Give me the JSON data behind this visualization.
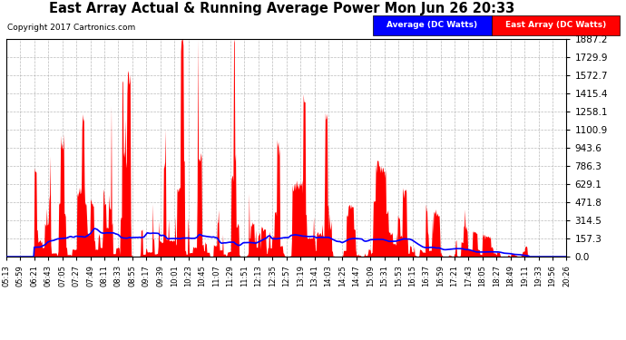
{
  "title": "East Array Actual & Running Average Power Mon Jun 26 20:33",
  "copyright": "Copyright 2017 Cartronics.com",
  "legend_labels": [
    "Average (DC Watts)",
    "East Array (DC Watts)"
  ],
  "legend_colors": [
    "blue",
    "red"
  ],
  "yticks": [
    0.0,
    157.3,
    314.5,
    471.8,
    629.1,
    786.3,
    943.6,
    1100.9,
    1258.1,
    1415.4,
    1572.7,
    1729.9,
    1887.2
  ],
  "ymax": 1887.2,
  "ymin": 0.0,
  "xtick_labels": [
    "05:13",
    "05:59",
    "06:21",
    "06:43",
    "07:05",
    "07:27",
    "07:49",
    "08:11",
    "08:33",
    "08:55",
    "09:17",
    "09:39",
    "10:01",
    "10:23",
    "10:45",
    "11:07",
    "11:29",
    "11:51",
    "12:13",
    "12:35",
    "12:57",
    "13:19",
    "13:41",
    "14:03",
    "14:25",
    "14:47",
    "15:09",
    "15:31",
    "15:53",
    "16:15",
    "16:37",
    "16:59",
    "17:21",
    "17:43",
    "18:05",
    "18:27",
    "18:49",
    "19:11",
    "19:33",
    "19:56",
    "20:26"
  ],
  "n_points": 920,
  "seed": 42,
  "peak_t": 330,
  "sigma": 210,
  "sunrise_idx": 46,
  "sunset_idx": 858
}
